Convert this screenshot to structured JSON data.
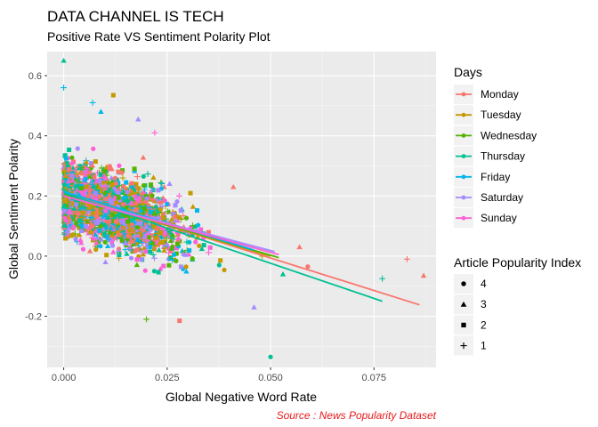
{
  "chart_data": {
    "type": "scatter",
    "title": "DATA CHANNEL IS TECH",
    "subtitle": "Positive Rate VS Sentiment Polarity Plot",
    "xlabel": "Global Negative Word Rate",
    "ylabel": "Global Sentiment Polarity",
    "caption": "Source : News Popularity Dataset",
    "xlim": [
      -0.004,
      0.09
    ],
    "ylim": [
      -0.37,
      0.68
    ],
    "x_ticks": [
      0.0,
      0.025,
      0.05,
      0.075
    ],
    "x_tick_labels": [
      "0.000",
      "0.025",
      "0.050",
      "0.075"
    ],
    "y_ticks": [
      -0.2,
      0.0,
      0.2,
      0.4,
      0.6
    ],
    "y_tick_labels": [
      "-0.2",
      "0.0",
      "0.2",
      "0.4",
      "0.6"
    ],
    "grid": true,
    "legend_color": {
      "title": "Days",
      "entries": [
        {
          "label": "Monday",
          "color": "#F8766D"
        },
        {
          "label": "Tuesday",
          "color": "#C49A00"
        },
        {
          "label": "Wednesday",
          "color": "#53B400"
        },
        {
          "label": "Thursday",
          "color": "#00C094"
        },
        {
          "label": "Friday",
          "color": "#00B6EB"
        },
        {
          "label": "Saturday",
          "color": "#A58AFF"
        },
        {
          "label": "Sunday",
          "color": "#FB61D7"
        }
      ]
    },
    "legend_shape": {
      "title": "Article Popularity Index",
      "entries": [
        {
          "label": "4",
          "shape": "circle"
        },
        {
          "label": "3",
          "shape": "triangle"
        },
        {
          "label": "2",
          "shape": "square"
        },
        {
          "label": "1",
          "shape": "plus"
        }
      ]
    },
    "trend_lines": [
      {
        "day": "Monday",
        "x": [
          0.0,
          0.086
        ],
        "y": [
          0.21,
          -0.162
        ]
      },
      {
        "day": "Tuesday",
        "x": [
          0.0,
          0.05
        ],
        "y": [
          0.205,
          0.0
        ]
      },
      {
        "day": "Wednesday",
        "x": [
          0.0,
          0.052
        ],
        "y": [
          0.205,
          -0.005
        ]
      },
      {
        "day": "Thursday",
        "x": [
          0.0,
          0.077
        ],
        "y": [
          0.21,
          -0.15
        ]
      },
      {
        "day": "Friday",
        "x": [
          0.0,
          0.046
        ],
        "y": [
          0.215,
          0.02
        ]
      },
      {
        "day": "Saturday",
        "x": [
          0.0,
          0.051
        ],
        "y": [
          0.2,
          0.015
        ]
      },
      {
        "day": "Sunday",
        "x": [
          0.0,
          0.052
        ],
        "y": [
          0.2,
          0.005
        ]
      }
    ],
    "outlier_points": [
      {
        "x": 0.0,
        "y": 0.65,
        "day": "Thursday",
        "index": "3"
      },
      {
        "x": 0.0,
        "y": 0.56,
        "day": "Friday",
        "index": "1"
      },
      {
        "x": 0.007,
        "y": 0.51,
        "day": "Friday",
        "index": "1"
      },
      {
        "x": 0.012,
        "y": 0.535,
        "day": "Tuesday",
        "index": "2"
      },
      {
        "x": 0.009,
        "y": 0.48,
        "day": "Friday",
        "index": "3"
      },
      {
        "x": 0.018,
        "y": 0.455,
        "day": "Saturday",
        "index": "3"
      },
      {
        "x": 0.022,
        "y": 0.41,
        "day": "Sunday",
        "index": "1"
      },
      {
        "x": 0.041,
        "y": 0.23,
        "day": "Monday",
        "index": "3"
      },
      {
        "x": 0.057,
        "y": 0.03,
        "day": "Monday",
        "index": "3"
      },
      {
        "x": 0.059,
        "y": -0.035,
        "day": "Monday",
        "index": "4"
      },
      {
        "x": 0.077,
        "y": -0.075,
        "day": "Thursday",
        "index": "1"
      },
      {
        "x": 0.083,
        "y": -0.01,
        "day": "Monday",
        "index": "1"
      },
      {
        "x": 0.087,
        "y": -0.065,
        "day": "Monday",
        "index": "3"
      },
      {
        "x": 0.046,
        "y": -0.17,
        "day": "Saturday",
        "index": "3"
      },
      {
        "x": 0.02,
        "y": -0.21,
        "day": "Wednesday",
        "index": "1"
      },
      {
        "x": 0.028,
        "y": -0.215,
        "day": "Monday",
        "index": "2"
      },
      {
        "x": 0.05,
        "y": -0.335,
        "day": "Thursday",
        "index": "4"
      },
      {
        "x": 0.053,
        "y": -0.06,
        "day": "Thursday",
        "index": "3"
      },
      {
        "x": 0.048,
        "y": 0.0,
        "day": "Tuesday",
        "index": "1"
      }
    ]
  }
}
